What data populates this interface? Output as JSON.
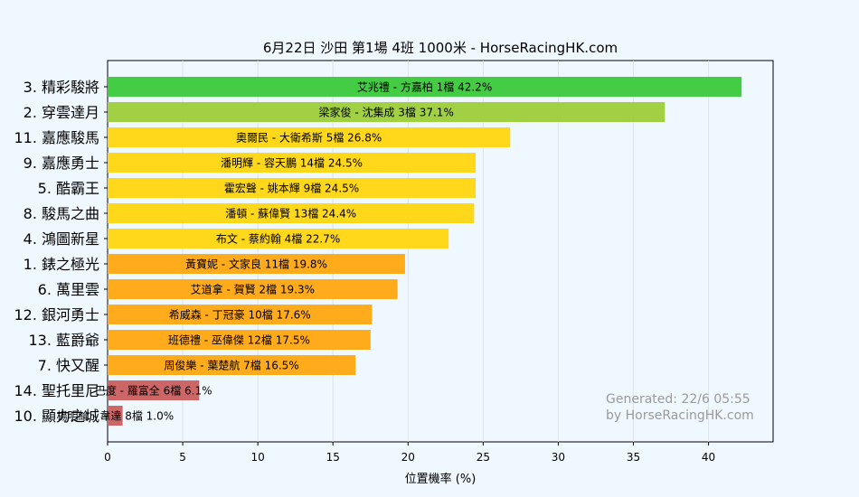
{
  "chart_data": {
    "type": "bar",
    "orientation": "horizontal",
    "title": "6月22日  沙田  第1場  4班  1000米 - HorseRacingHK.com",
    "xlabel": "位置機率 (%)",
    "ylabel": "",
    "xlim": [
      0,
      44.3
    ],
    "xticks": [
      0,
      5,
      10,
      15,
      20,
      25,
      30,
      35,
      40
    ],
    "grid": "vertical",
    "categories": [
      "3. 精彩駿將",
      "2. 穿雲達月",
      "11. 嘉應駿馬",
      "9. 嘉應勇士",
      "5. 酷霸王",
      "8. 駿馬之曲",
      "4. 鴻圖新星",
      "1. 錶之極光",
      "6. 萬里雲",
      "12. 銀河勇士",
      "13. 藍爵爺",
      "7. 快又醒",
      "14. 聖托里尼",
      "10. 顯力之城"
    ],
    "values": [
      42.2,
      37.1,
      26.8,
      24.5,
      24.5,
      24.4,
      22.7,
      19.8,
      19.3,
      17.6,
      17.5,
      16.5,
      6.1,
      1.0
    ],
    "bar_labels": [
      "艾兆禮 - 方嘉柏 1檔  42.2%",
      "梁家俊 - 沈集成 3檔  37.1%",
      "奧爾民 - 大衛希斯 5檔  26.8%",
      "潘明輝 - 容天鵬 14檔  24.5%",
      "霍宏聲 - 姚本輝 9檔  24.5%",
      "潘頓 - 蘇偉賢 13檔  24.4%",
      "布文 - 蔡約翰 4檔  22.7%",
      "黃寶妮 - 文家良 11檔  19.8%",
      "艾道拿 - 賀賢 2檔  19.3%",
      "希威森 - 丁冠豪 10檔  17.6%",
      "班德禮 - 巫偉傑 12檔  17.5%",
      "周俊樂 - 葉楚航 7檔  16.5%",
      "巴度 - 羅富全 6檔  6.1%",
      "楊明綸 - 韋達 8檔  1.0%"
    ],
    "colors": {
      "green": "#44cc44",
      "yellowgreen": "#a2d045",
      "yellow": "#ffd81b",
      "orange": "#ffab1b",
      "red": "#cd6666",
      "grid": "#dde3ea",
      "plot_bg": "#f0f8ff"
    },
    "bar_color_keys": [
      "green",
      "yellowgreen",
      "yellow",
      "yellow",
      "yellow",
      "yellow",
      "yellow",
      "orange",
      "orange",
      "orange",
      "orange",
      "orange",
      "red",
      "red"
    ],
    "watermark": [
      "Generated: 22/6 05:55",
      "by HorseRacingHK.com"
    ]
  }
}
